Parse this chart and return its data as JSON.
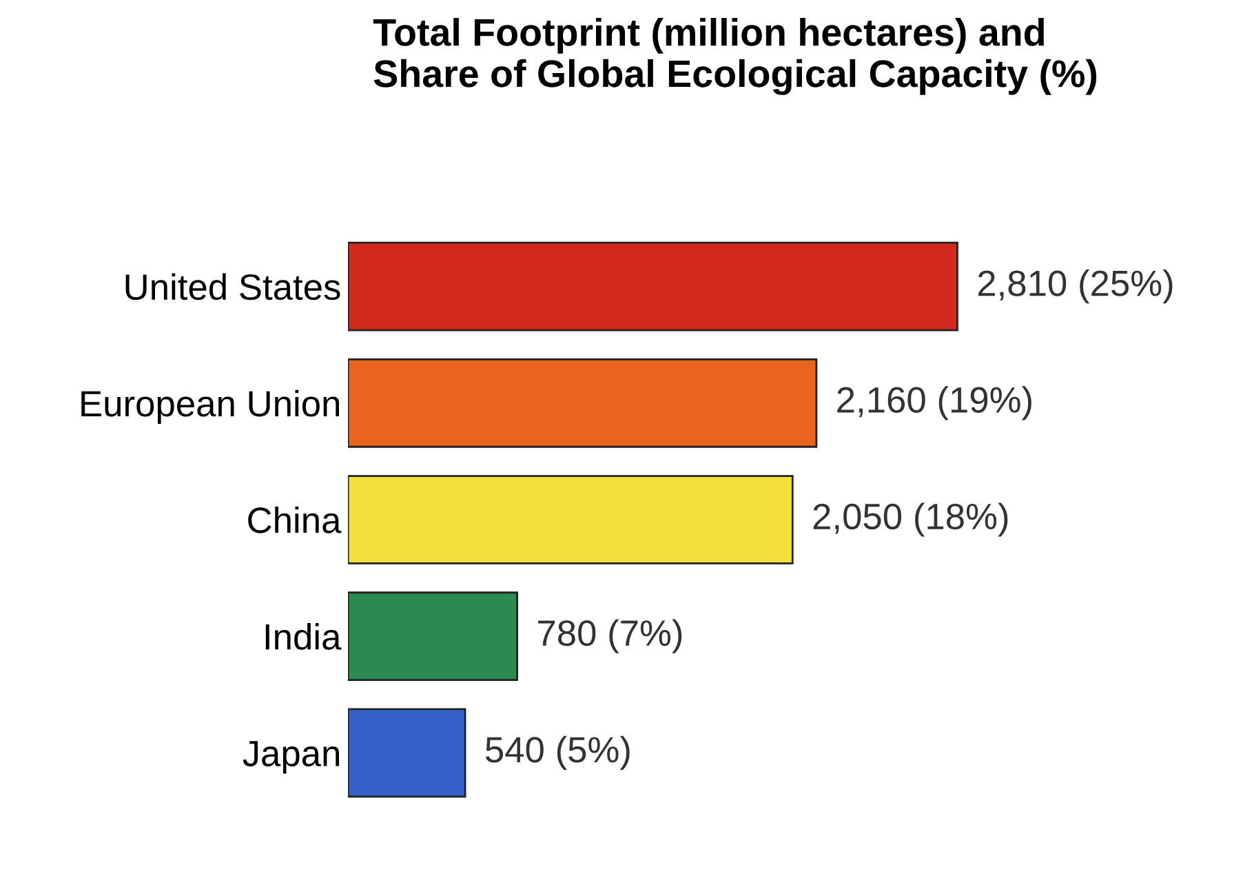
{
  "chart_data": {
    "type": "bar",
    "orientation": "horizontal",
    "title": "Total Footprint (million hectares) and\nShare of Global Ecological Capacity (%)",
    "categories": [
      "United States",
      "European Union",
      "China",
      "India",
      "Japan"
    ],
    "values": [
      2810,
      2160,
      2050,
      780,
      540
    ],
    "colors": [
      "#d42a1e",
      "#e8651e",
      "#f2e13a",
      "#2a8a50",
      "#3460c8"
    ],
    "value_labels": [
      "2,810 (25%)",
      "2,160 (19%)",
      "2,050 (18%)",
      "780 (7%)",
      "540 (5%)"
    ],
    "tick_labels": "y",
    "grid": false,
    "legend": false
  }
}
